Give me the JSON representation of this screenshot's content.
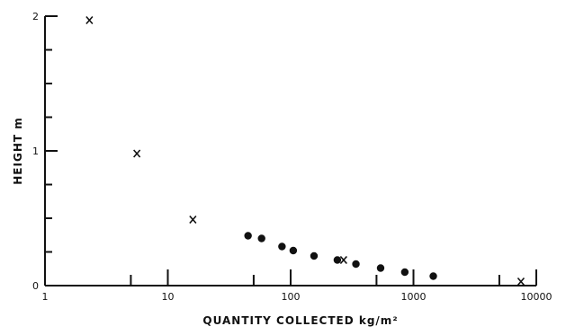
{
  "chart_data": {
    "type": "scatter",
    "title": "",
    "xlabel": "QUANTITY COLLECTED kg/m²",
    "ylabel": "HEIGHT m",
    "xscale": "log",
    "xlim": [
      1,
      10000
    ],
    "ylim": [
      0,
      2
    ],
    "x_tick_labels": [
      "1",
      "10",
      "100",
      "1000",
      "10000"
    ],
    "x_tick_values": [
      1,
      10,
      100,
      1000,
      10000
    ],
    "y_tick_labels": [
      "0",
      "1",
      "2"
    ],
    "y_tick_values": [
      0,
      1,
      2
    ],
    "grid": false,
    "legend": "none",
    "series": [
      {
        "marker": "x",
        "points": [
          {
            "x": 2.3,
            "y": 1.97
          },
          {
            "x": 5.6,
            "y": 0.98
          },
          {
            "x": 16,
            "y": 0.49
          },
          {
            "x": 270,
            "y": 0.19
          },
          {
            "x": 7500,
            "y": 0.03
          }
        ]
      },
      {
        "marker": "dot",
        "points": [
          {
            "x": 45,
            "y": 0.37
          },
          {
            "x": 58,
            "y": 0.35
          },
          {
            "x": 85,
            "y": 0.29
          },
          {
            "x": 105,
            "y": 0.26
          },
          {
            "x": 155,
            "y": 0.22
          },
          {
            "x": 240,
            "y": 0.19
          },
          {
            "x": 340,
            "y": 0.16
          },
          {
            "x": 540,
            "y": 0.13
          },
          {
            "x": 850,
            "y": 0.1
          },
          {
            "x": 1450,
            "y": 0.07
          }
        ]
      }
    ]
  }
}
